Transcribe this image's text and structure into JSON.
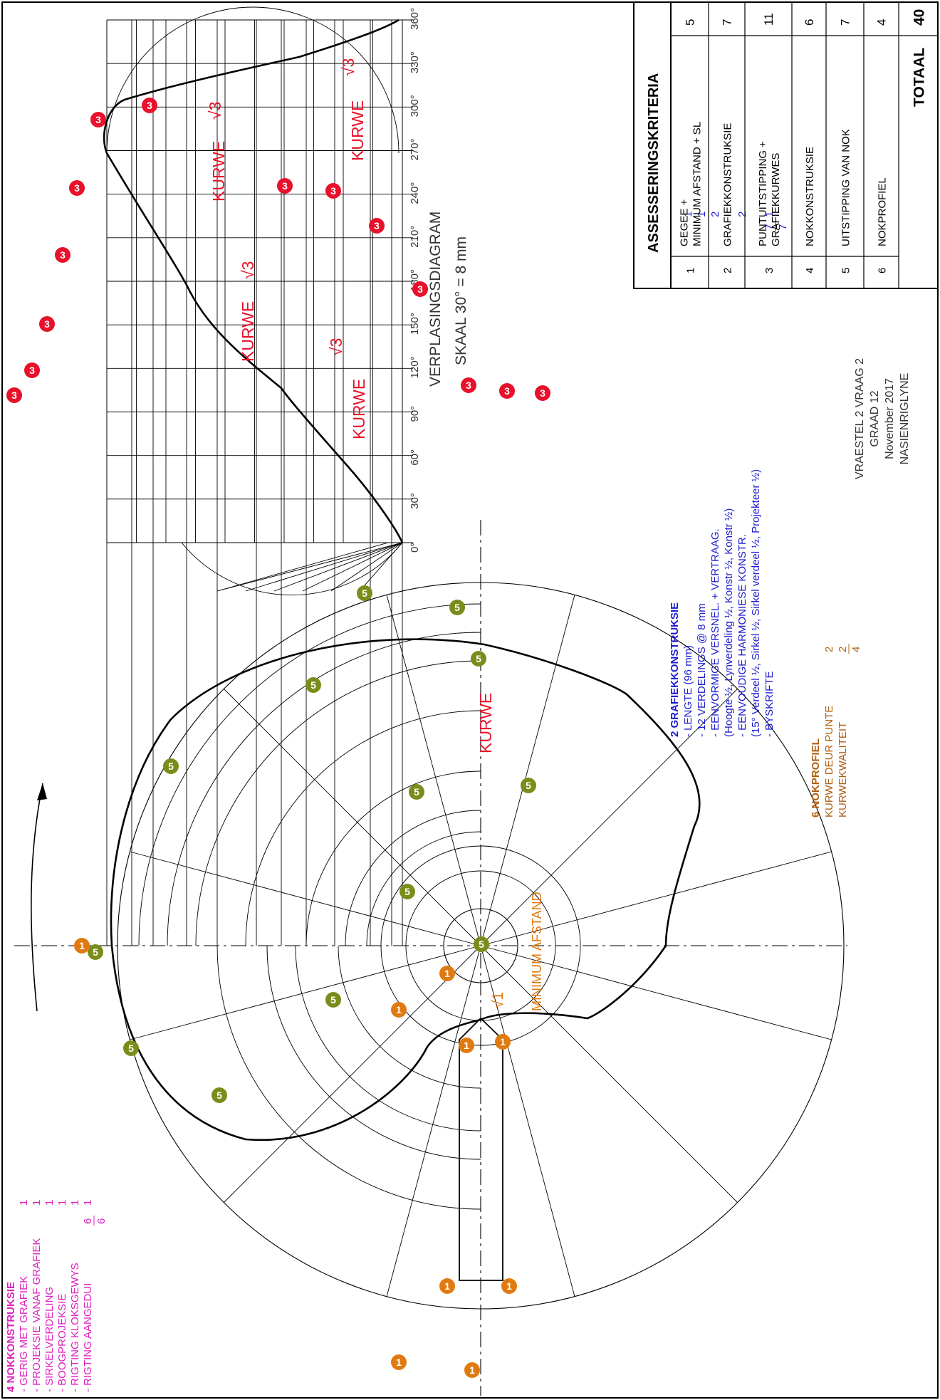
{
  "colors": {
    "magenta": "#e020c0",
    "blue": "#1c1cd0",
    "orange": "#e07a10",
    "olive": "#7a8c1a",
    "red": "#e8102a",
    "gray": "#333333"
  },
  "graph": {
    "angle_labels": [
      "0°",
      "30°",
      "60°",
      "90°",
      "120°",
      "150°",
      "180°",
      "210°",
      "240°",
      "270°",
      "300°",
      "330°",
      "360°"
    ],
    "title_line1": "VERPLASINGSDIAGRAM",
    "title_line2": "SKAAL 30° = 8 mm",
    "kurwe_labels": [
      "KURWE",
      "KURWE",
      "KURWE",
      "KURWE",
      "KURWE"
    ],
    "check_mark": "√3"
  },
  "cam": {
    "min_distance_label": "MINIMUM AFSTAND",
    "check_mark": "√1",
    "criterion_badges": {
      "one": "1",
      "three": "3",
      "five": "5"
    }
  },
  "notes_section4": {
    "heading": "4 NOKKONSTRUKSIE",
    "items": [
      {
        "label": "- GERIG MET GRAFIEK",
        "mark": "1"
      },
      {
        "label": "- PROJEKSIE VANAF GRAFIEK",
        "mark": "1"
      },
      {
        "label": "- SIRKELVERDELING",
        "mark": "1"
      },
      {
        "label": "- BOOGPROJEKSIE",
        "mark": "1"
      },
      {
        "label": "- RIGTING KLOKSGEWYS",
        "mark": "1"
      },
      {
        "label": "- RIGTING AANGEDUI",
        "mark": "1"
      }
    ],
    "total_num": "6",
    "total_den": "6"
  },
  "notes_section2": {
    "heading": "2 GRAFIEKKONSTRUKSIE",
    "items": [
      {
        "label": "- LENGTE (96 mm)",
        "mark": "1"
      },
      {
        "label": "- 12 VERDELINGS @ 8 mm",
        "mark": "1"
      },
      {
        "label": "- EENVORMIGE VERSNEL. + VERTRAAG.",
        "mark": "2"
      },
      {
        "label": "(Hoogte ½, Lynverdeling ½, Konstr ½, Konstr ½)",
        "mark": ""
      },
      {
        "label": "- EENVOUDIGE HARMONIESE KONSTR.",
        "mark": "2"
      },
      {
        "label": "(15° Verdeel ½, Sirkel ½, Sirkel verdeel ½, Projekteer ½)",
        "mark": ""
      },
      {
        "label": "- BYSKRIFTE",
        "mark": "1"
      }
    ],
    "total_num": "7",
    "total_den": "7"
  },
  "notes_section6": {
    "heading": "6 NOKPROFIEL",
    "items": [
      {
        "label": "KURWE DEUR PUNTE",
        "mark": "2"
      },
      {
        "label": "KURWEKWALITEIT",
        "mark": "2"
      }
    ],
    "total_den": "4"
  },
  "exam_info": {
    "line1": "VRAESTEL 2 VRAAG 2",
    "line2": "GRAAD 12",
    "line3": "November 2017",
    "line4": "NASIENRIGLYNE"
  },
  "criteria_table": {
    "title": "ASSESSERINGSKRITERIA",
    "rows": [
      {
        "num": "1",
        "label": "GEGEE + MINIMUM AFSTAND + SL",
        "mark": "5"
      },
      {
        "num": "2",
        "label": "GRAFIEKKONSTRUKSIE",
        "mark": "7"
      },
      {
        "num": "3",
        "label": "PUNTUITSTIPPING + GRAFIEKKURWES",
        "mark": "11"
      },
      {
        "num": "4",
        "label": "NOKKONSTRUKSIE",
        "mark": "6"
      },
      {
        "num": "5",
        "label": "UITSTIPPING VAN NOK",
        "mark": "7"
      },
      {
        "num": "6",
        "label": "NOKPROFIEL",
        "mark": "4"
      }
    ],
    "total_label": "TOTAAL",
    "total_mark": "40"
  }
}
